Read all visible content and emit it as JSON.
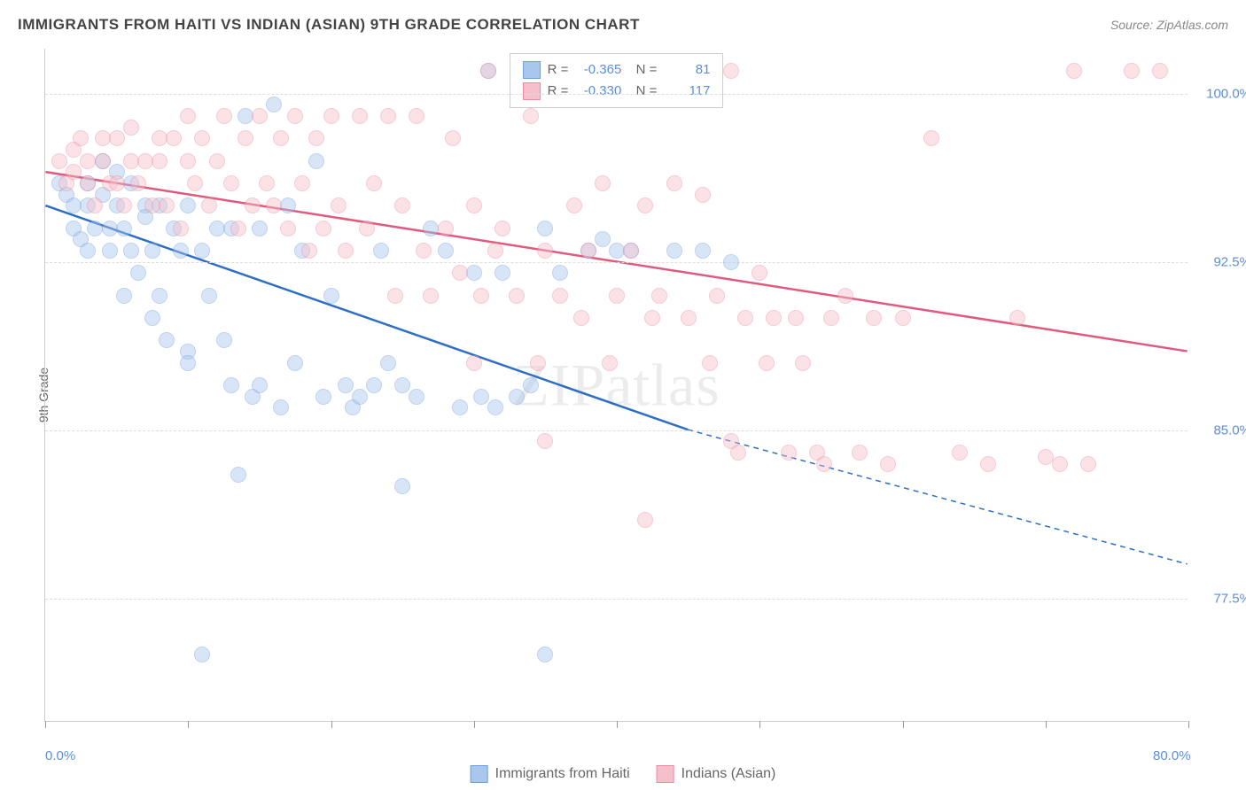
{
  "title": "IMMIGRANTS FROM HAITI VS INDIAN (ASIAN) 9TH GRADE CORRELATION CHART",
  "source": "Source: ZipAtlas.com",
  "watermark": "ZIPatlas",
  "ylabel": "9th Grade",
  "chart": {
    "type": "scatter",
    "xlim": [
      0,
      80
    ],
    "ylim": [
      72,
      102
    ],
    "xtick_labels": [
      {
        "pos": 0,
        "label": "0.0%"
      },
      {
        "pos": 80,
        "label": "80.0%"
      }
    ],
    "xtick_marks": [
      0,
      10,
      20,
      30,
      40,
      50,
      60,
      70,
      80
    ],
    "ytick_labels": [
      {
        "pos": 77.5,
        "label": "77.5%"
      },
      {
        "pos": 85.0,
        "label": "85.0%"
      },
      {
        "pos": 92.5,
        "label": "92.5%"
      },
      {
        "pos": 100.0,
        "label": "100.0%"
      }
    ],
    "background_color": "#ffffff",
    "grid_color": "#dddddd",
    "marker_radius": 9,
    "marker_opacity": 0.45,
    "series": [
      {
        "name": "Immigrants from Haiti",
        "color_fill": "#a9c7ed",
        "color_stroke": "#6fa0de",
        "line_color": "#2e6fc4",
        "R": "-0.365",
        "N": "81",
        "trend_solid": {
          "x1": 0,
          "y1": 95.0,
          "x2": 45,
          "y2": 85.0
        },
        "trend_dashed": {
          "x1": 45,
          "y1": 85.0,
          "x2": 80,
          "y2": 79.0
        },
        "points": [
          [
            1,
            96
          ],
          [
            1.5,
            95.5
          ],
          [
            2,
            95
          ],
          [
            2,
            94
          ],
          [
            2.5,
            93.5
          ],
          [
            3,
            96
          ],
          [
            3,
            95
          ],
          [
            3.5,
            94
          ],
          [
            3,
            93
          ],
          [
            4,
            97
          ],
          [
            4,
            95.5
          ],
          [
            4.5,
            94
          ],
          [
            4.5,
            93
          ],
          [
            5,
            96.5
          ],
          [
            5,
            95
          ],
          [
            5.5,
            94
          ],
          [
            5.5,
            91
          ],
          [
            6,
            96
          ],
          [
            6,
            93
          ],
          [
            6.5,
            92
          ],
          [
            7,
            95
          ],
          [
            7,
            94.5
          ],
          [
            7.5,
            93
          ],
          [
            7.5,
            90
          ],
          [
            8,
            95
          ],
          [
            8,
            91
          ],
          [
            8.5,
            89
          ],
          [
            9,
            94
          ],
          [
            9.5,
            93
          ],
          [
            10,
            95
          ],
          [
            10,
            88.5
          ],
          [
            10,
            88
          ],
          [
            11,
            93
          ],
          [
            11.5,
            91
          ],
          [
            12,
            94
          ],
          [
            12.5,
            89
          ],
          [
            13,
            94
          ],
          [
            13,
            87
          ],
          [
            13.5,
            83
          ],
          [
            14,
            99
          ],
          [
            14.5,
            86.5
          ],
          [
            15,
            94
          ],
          [
            15,
            87
          ],
          [
            16,
            99.5
          ],
          [
            16.5,
            86
          ],
          [
            17,
            95
          ],
          [
            17.5,
            88
          ],
          [
            18,
            93
          ],
          [
            19,
            97
          ],
          [
            19.5,
            86.5
          ],
          [
            20,
            91
          ],
          [
            21,
            87
          ],
          [
            21.5,
            86
          ],
          [
            22,
            86.5
          ],
          [
            23,
            87
          ],
          [
            23.5,
            93
          ],
          [
            24,
            88
          ],
          [
            25,
            87
          ],
          [
            25,
            82.5
          ],
          [
            26,
            86.5
          ],
          [
            27,
            94
          ],
          [
            28,
            93
          ],
          [
            29,
            86
          ],
          [
            30,
            92
          ],
          [
            30.5,
            86.5
          ],
          [
            31,
            101
          ],
          [
            31.5,
            86
          ],
          [
            32,
            92
          ],
          [
            33,
            86.5
          ],
          [
            34,
            87
          ],
          [
            11,
            75
          ],
          [
            35,
            75
          ],
          [
            35,
            94
          ],
          [
            36,
            92
          ],
          [
            38,
            93
          ],
          [
            39,
            93.5
          ],
          [
            40,
            93
          ],
          [
            41,
            93
          ],
          [
            44,
            93
          ],
          [
            46,
            93
          ],
          [
            48,
            92.5
          ]
        ]
      },
      {
        "name": "Indians (Asian)",
        "color_fill": "#f5c0cb",
        "color_stroke": "#ec8ba2",
        "line_color": "#e05a7d",
        "R": "-0.330",
        "N": "117",
        "trend_solid": {
          "x1": 0,
          "y1": 96.5,
          "x2": 80,
          "y2": 88.5
        },
        "trend_dashed": null,
        "points": [
          [
            1,
            97
          ],
          [
            1.5,
            96
          ],
          [
            2,
            96.5
          ],
          [
            2,
            97.5
          ],
          [
            2.5,
            98
          ],
          [
            3,
            97
          ],
          [
            3,
            96
          ],
          [
            3.5,
            95
          ],
          [
            4,
            98
          ],
          [
            4,
            97
          ],
          [
            4.5,
            96
          ],
          [
            5,
            98
          ],
          [
            5,
            96
          ],
          [
            5.5,
            95
          ],
          [
            6,
            97
          ],
          [
            6,
            98.5
          ],
          [
            6.5,
            96
          ],
          [
            7,
            97
          ],
          [
            7.5,
            95
          ],
          [
            8,
            98
          ],
          [
            8,
            97
          ],
          [
            8.5,
            95
          ],
          [
            9,
            98
          ],
          [
            9.5,
            94
          ],
          [
            10,
            97
          ],
          [
            10,
            99
          ],
          [
            10.5,
            96
          ],
          [
            11,
            98
          ],
          [
            11.5,
            95
          ],
          [
            12,
            97
          ],
          [
            12.5,
            99
          ],
          [
            13,
            96
          ],
          [
            13.5,
            94
          ],
          [
            14,
            98
          ],
          [
            14.5,
            95
          ],
          [
            15,
            99
          ],
          [
            15.5,
            96
          ],
          [
            16,
            95
          ],
          [
            16.5,
            98
          ],
          [
            17,
            94
          ],
          [
            17.5,
            99
          ],
          [
            18,
            96
          ],
          [
            18.5,
            93
          ],
          [
            19,
            98
          ],
          [
            19.5,
            94
          ],
          [
            20,
            99
          ],
          [
            20.5,
            95
          ],
          [
            21,
            93
          ],
          [
            22,
            99
          ],
          [
            22.5,
            94
          ],
          [
            23,
            96
          ],
          [
            24,
            99
          ],
          [
            24.5,
            91
          ],
          [
            25,
            95
          ],
          [
            26,
            99
          ],
          [
            26.5,
            93
          ],
          [
            27,
            91
          ],
          [
            28,
            94
          ],
          [
            28.5,
            98
          ],
          [
            29,
            92
          ],
          [
            30,
            95
          ],
          [
            30.5,
            91
          ],
          [
            31,
            101
          ],
          [
            31.5,
            93
          ],
          [
            32,
            94
          ],
          [
            33,
            91
          ],
          [
            34,
            99
          ],
          [
            34.5,
            88
          ],
          [
            35,
            93
          ],
          [
            36,
            91
          ],
          [
            37,
            95
          ],
          [
            37.5,
            90
          ],
          [
            38,
            93
          ],
          [
            39,
            96
          ],
          [
            39.5,
            88
          ],
          [
            40,
            91
          ],
          [
            41,
            93
          ],
          [
            42,
            95
          ],
          [
            42.5,
            90
          ],
          [
            43,
            91
          ],
          [
            44,
            96
          ],
          [
            45,
            90
          ],
          [
            46,
            95.5
          ],
          [
            46.5,
            88
          ],
          [
            47,
            91
          ],
          [
            48,
            101
          ],
          [
            48.5,
            84
          ],
          [
            49,
            90
          ],
          [
            50,
            92
          ],
          [
            50.5,
            88
          ],
          [
            51,
            90
          ],
          [
            52,
            84
          ],
          [
            52.5,
            90
          ],
          [
            53,
            88
          ],
          [
            54,
            84
          ],
          [
            54.5,
            83.5
          ],
          [
            55,
            90
          ],
          [
            56,
            91
          ],
          [
            57,
            84
          ],
          [
            58,
            90
          ],
          [
            59,
            83.5
          ],
          [
            60,
            90
          ],
          [
            62,
            98
          ],
          [
            64,
            84
          ],
          [
            66,
            83.5
          ],
          [
            68,
            90
          ],
          [
            70,
            83.8
          ],
          [
            71,
            83.5
          ],
          [
            72,
            101
          ],
          [
            73,
            83.5
          ],
          [
            76,
            101
          ],
          [
            78,
            101
          ],
          [
            42,
            81
          ],
          [
            35,
            84.5
          ],
          [
            30,
            88
          ],
          [
            48,
            84.5
          ]
        ]
      }
    ]
  },
  "legend_bottom": [
    {
      "label": "Immigrants from Haiti",
      "fill": "#a9c7ed",
      "stroke": "#6fa0de"
    },
    {
      "label": "Indians (Asian)",
      "fill": "#f5c0cb",
      "stroke": "#ec8ba2"
    }
  ]
}
